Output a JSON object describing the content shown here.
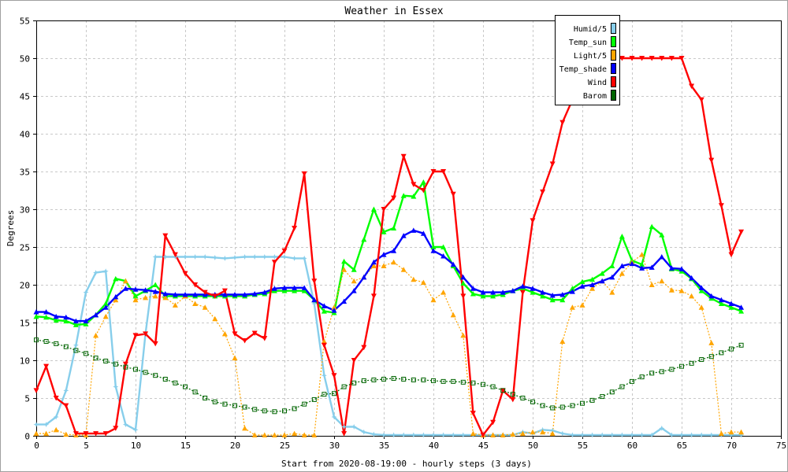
{
  "chart_data": {
    "type": "line",
    "title": "Weather in Essex",
    "xlabel": "Start from 2020-08-19:00 - hourly steps (3 days)",
    "ylabel": "Degrees",
    "xlim": [
      0,
      75
    ],
    "ylim": [
      0,
      55
    ],
    "xticks": [
      0,
      5,
      10,
      15,
      20,
      25,
      30,
      35,
      40,
      45,
      50,
      55,
      60,
      65,
      70,
      75
    ],
    "yticks": [
      0,
      5,
      10,
      15,
      20,
      25,
      30,
      35,
      40,
      45,
      50,
      55
    ],
    "grid": true,
    "legend_position": "top-right",
    "series": [
      {
        "name": "Humid/5",
        "color": "#87ceeb",
        "marker": "star",
        "dashed": false,
        "values": [
          1.5,
          1.5,
          2.5,
          6,
          12,
          19,
          21.6,
          21.8,
          6.5,
          1.5,
          0.8,
          13.5,
          23.7,
          23.7,
          23.7,
          23.7,
          23.7,
          23.7,
          23.6,
          23.5,
          23.6,
          23.7,
          23.7,
          23.7,
          23.7,
          23.7,
          23.5,
          23.5,
          17.5,
          8,
          2.5,
          1.2,
          1.2,
          0.5,
          0.2,
          0.1,
          0.1,
          0.1,
          0.1,
          0.1,
          0.1,
          0.1,
          0.1,
          0.1,
          0.1,
          0.1,
          0.1,
          0.1,
          0.1,
          0.5,
          0.3,
          0.8,
          0.7,
          0.3,
          0.1,
          0.1,
          0.1,
          0.1,
          0.1,
          0.1,
          0.1,
          0.1,
          0.1,
          1,
          0.1,
          0.1,
          0.1,
          0.1,
          0.1,
          0.1,
          0.1,
          0.1
        ]
      },
      {
        "name": "Temp_sun",
        "color": "#00ff00",
        "marker": "triangle",
        "dashed": false,
        "values": [
          15.8,
          15.7,
          15.3,
          15.2,
          14.7,
          14.8,
          16,
          17.5,
          20.8,
          20.5,
          18.5,
          19.2,
          20,
          18.5,
          18.5,
          18.5,
          18.5,
          18.5,
          18.5,
          18.5,
          18.5,
          18.5,
          18.7,
          18.8,
          19.2,
          19.2,
          19.2,
          19.2,
          18,
          16.5,
          16.3,
          23.1,
          22,
          26,
          30,
          27,
          27.5,
          31.8,
          31.7,
          33.6,
          25,
          25,
          22.5,
          20.2,
          18.8,
          18.5,
          18.5,
          18.7,
          19.2,
          19.5,
          19,
          18.5,
          18,
          18,
          19.5,
          20.4,
          20.7,
          21.5,
          22.5,
          26.4,
          23.2,
          22.7,
          27.7,
          26.6,
          22.1,
          21.8,
          20.8,
          19.2,
          18.2,
          17.5,
          17,
          16.5
        ]
      },
      {
        "name": "Light/5",
        "color": "#ffa500",
        "marker": "triangle",
        "dashed": true,
        "values": [
          0.3,
          0.3,
          0.8,
          0.2,
          0.1,
          0.1,
          13.3,
          15.8,
          18,
          20.5,
          18,
          18.3,
          18.5,
          18.3,
          17.3,
          18.5,
          17.5,
          17,
          15.5,
          13.5,
          10.3,
          1,
          0.1,
          0.1,
          0.1,
          0.1,
          0.3,
          0.1,
          0.1,
          12.5,
          17,
          22,
          20.5,
          21,
          22.5,
          22.5,
          23,
          22,
          20.7,
          20.3,
          18,
          19,
          16,
          13.3,
          0.3,
          0.1,
          0.1,
          0.1,
          0.2,
          0.3,
          0.5,
          0.5,
          0.3,
          12.5,
          17,
          17.3,
          19.5,
          20.5,
          19,
          21.5,
          23,
          24,
          20,
          20.5,
          19.3,
          19.2,
          18.5,
          17,
          12.3,
          0.3,
          0.5,
          0.5
        ]
      },
      {
        "name": "Temp_shade",
        "color": "#0000ff",
        "marker": "triangle",
        "dashed": false,
        "values": [
          16.4,
          16.4,
          15.8,
          15.7,
          15.2,
          15.2,
          16,
          17,
          18.4,
          19.5,
          19.4,
          19.3,
          19.1,
          18.8,
          18.7,
          18.7,
          18.7,
          18.7,
          18.7,
          18.7,
          18.7,
          18.7,
          18.8,
          19,
          19.5,
          19.6,
          19.6,
          19.6,
          18,
          17.2,
          16.6,
          17.8,
          19.2,
          21,
          23,
          24,
          24.5,
          26.5,
          27.2,
          26.8,
          24.5,
          23.8,
          22.7,
          21,
          19.5,
          19,
          19,
          19,
          19.2,
          19.8,
          19.5,
          19,
          18.6,
          18.7,
          19.1,
          19.8,
          20,
          20.5,
          21,
          22.5,
          22.8,
          22.2,
          22.3,
          23.7,
          22.2,
          22.1,
          20.9,
          19.6,
          18.5,
          18,
          17.5,
          17
        ]
      },
      {
        "name": "Wind",
        "color": "#ff0000",
        "marker": "tri_down",
        "dashed": false,
        "values": [
          6,
          9.2,
          5,
          4,
          0.3,
          0.3,
          0.3,
          0.3,
          1,
          9.5,
          13.3,
          13.5,
          12.2,
          26.5,
          24,
          21.5,
          20,
          19,
          18.5,
          19.2,
          13.5,
          12.6,
          13.6,
          12.9,
          23,
          24.5,
          27.5,
          34.7,
          20.5,
          12,
          8,
          0.3,
          10,
          11.7,
          18.5,
          30,
          31.5,
          37,
          33.3,
          32.5,
          35,
          35,
          32,
          18.5,
          3,
          0.1,
          1.8,
          6,
          4.8,
          19,
          28.5,
          32.3,
          36,
          41.5,
          44.5,
          47,
          49,
          50,
          50,
          50,
          50,
          50,
          50,
          50,
          50,
          50,
          46.3,
          44.5,
          36.5,
          30.5,
          24,
          27
        ]
      },
      {
        "name": "Barom",
        "color": "#006400",
        "marker": "square",
        "dashed": true,
        "values": [
          12.7,
          12.5,
          12.2,
          11.8,
          11.3,
          10.9,
          10.3,
          9.9,
          9.5,
          9.1,
          8.8,
          8.4,
          8,
          7.5,
          7,
          6.5,
          5.8,
          5,
          4.5,
          4.2,
          4,
          3.8,
          3.5,
          3.3,
          3.2,
          3.3,
          3.6,
          4.2,
          4.8,
          5.5,
          5.6,
          6.5,
          7,
          7.3,
          7.4,
          7.5,
          7.6,
          7.5,
          7.4,
          7.4,
          7.3,
          7.2,
          7.2,
          7.1,
          7,
          6.8,
          6.5,
          6,
          5.5,
          5,
          4.5,
          4,
          3.7,
          3.8,
          4,
          4.3,
          4.7,
          5.2,
          5.8,
          6.5,
          7.2,
          7.8,
          8.3,
          8.5,
          8.8,
          9.2,
          9.6,
          10.1,
          10.5,
          11,
          11.5,
          12
        ]
      }
    ]
  }
}
